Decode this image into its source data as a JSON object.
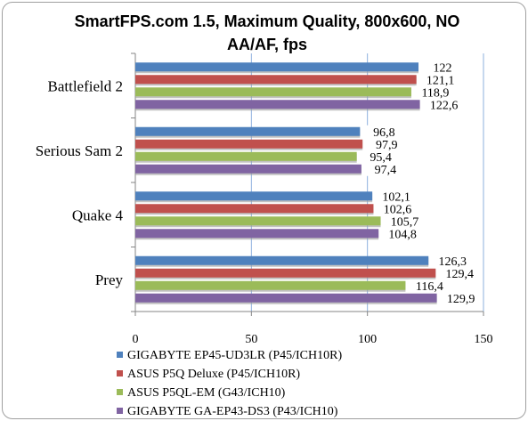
{
  "chart_data": {
    "type": "bar",
    "orientation": "horizontal",
    "title": "SmartFPS.com 1.5, Maximum Quality, 800x600, NO AA/AF, fps",
    "categories": [
      "Battlefield 2",
      "Serious Sam 2",
      "Quake 4",
      "Prey"
    ],
    "series": [
      {
        "name": "GIGABYTE EP45-UD3LR (P45/ICH10R)",
        "color": "#4f81bd",
        "values": [
          122,
          96.8,
          102.1,
          126.3
        ],
        "labels": [
          "122",
          "96,8",
          "102,1",
          "126,3"
        ]
      },
      {
        "name": "ASUS P5Q Deluxe (P45/ICH10R)",
        "color": "#c0504d",
        "values": [
          121.1,
          97.9,
          102.6,
          129.4
        ],
        "labels": [
          "121,1",
          "97,9",
          "102,6",
          "129,4"
        ]
      },
      {
        "name": "ASUS P5QL-EM (G43/ICH10)",
        "color": "#9bbb59",
        "values": [
          118.9,
          95.4,
          105.7,
          116.4
        ],
        "labels": [
          "118,9",
          "95,4",
          "105,7",
          "116,4"
        ]
      },
      {
        "name": "GIGABYTE GA-EP43-DS3 (P43/ICH10)",
        "color": "#8064a2",
        "values": [
          122.6,
          97.4,
          104.8,
          129.9
        ],
        "labels": [
          "122,6",
          "97,4",
          "104,8",
          "129,9"
        ]
      }
    ],
    "xlim": [
      0,
      150
    ],
    "xticks": [
      "0",
      "50",
      "100",
      "150"
    ],
    "grid": true,
    "legend_position": "bottom"
  }
}
